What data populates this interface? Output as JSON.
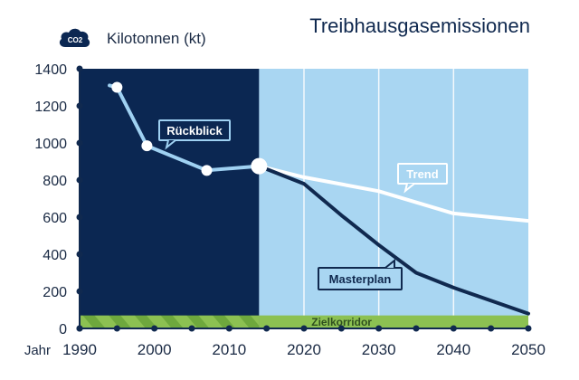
{
  "chart_data": {
    "type": "line",
    "title": "Treibhausgasemissionen",
    "ylabel": "Kilotonnen (kt)",
    "xlabel": "Jahr",
    "unit_icon_label": "CO2",
    "xlim": [
      1990,
      2050
    ],
    "ylim": [
      0,
      1400
    ],
    "x_ticks": [
      1990,
      2000,
      2010,
      2020,
      2030,
      2040,
      2050
    ],
    "y_ticks": [
      0,
      200,
      400,
      600,
      800,
      1000,
      1200,
      1400
    ],
    "history_end": 2014,
    "colors": {
      "history_bg": "#0b2752",
      "future_bg": "#a9d6f2",
      "history_line": "#9fd1f2",
      "trend_line": "#ffffff",
      "masterplan_line": "#10294f",
      "target_band": "#8cc152",
      "target_stripe": "#6ea83d"
    },
    "target_band": {
      "label": "Zielkorridor",
      "range": [
        0,
        70
      ]
    },
    "series": [
      {
        "name": "Rückblick",
        "x": [
          1994,
          1995,
          1999,
          2007,
          2014
        ],
        "y": [
          1310,
          1300,
          985,
          852,
          875
        ],
        "markers": [
          1995,
          1999,
          2007
        ]
      },
      {
        "name": "Trend",
        "x": [
          2014,
          2020,
          2030,
          2040,
          2050
        ],
        "y": [
          875,
          815,
          740,
          620,
          580
        ]
      },
      {
        "name": "Masterplan",
        "x": [
          2014,
          2020,
          2025,
          2030,
          2035,
          2040,
          2050
        ],
        "y": [
          875,
          780,
          610,
          450,
          300,
          220,
          80
        ]
      }
    ],
    "grid": true,
    "legend": "inline"
  }
}
